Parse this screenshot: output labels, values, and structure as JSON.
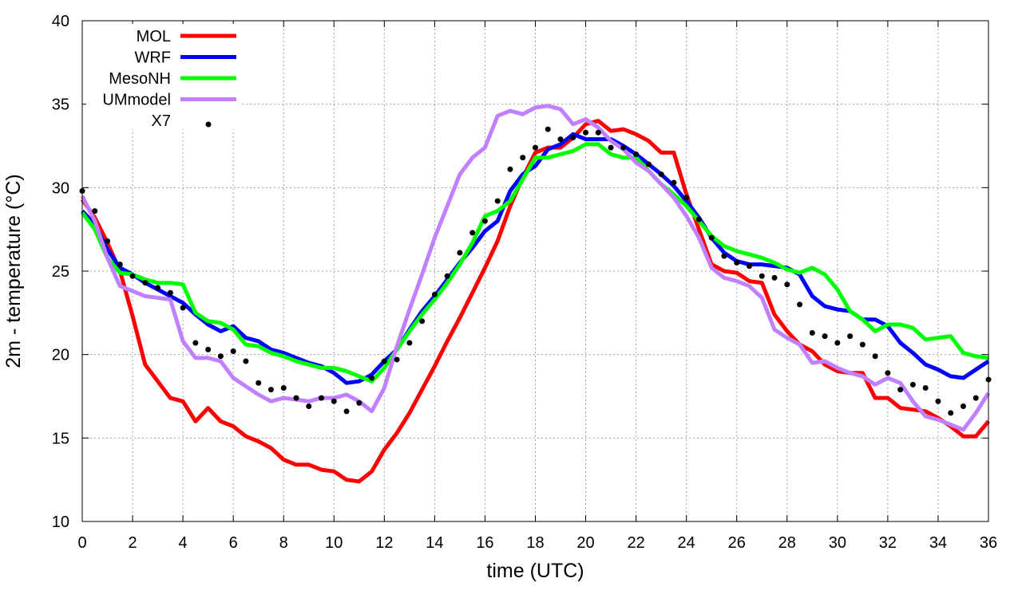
{
  "chart_data": {
    "type": "line",
    "title": "",
    "xlabel": "time (UTC)",
    "ylabel": "2m - temperature (°C)",
    "xlim": [
      0,
      36
    ],
    "ylim": [
      10,
      40
    ],
    "xticks": [
      0,
      2,
      4,
      6,
      8,
      10,
      12,
      14,
      16,
      18,
      20,
      22,
      24,
      26,
      28,
      30,
      32,
      34,
      36
    ],
    "yticks": [
      10,
      15,
      20,
      25,
      30,
      35,
      40
    ],
    "grid": true,
    "legend_position": "top-left",
    "series": [
      {
        "name": "MOL",
        "color": "#ff0000",
        "style": "line",
        "x": [
          0,
          0.5,
          1,
          1.5,
          2,
          2.5,
          3,
          3.5,
          4,
          4.5,
          5,
          5.5,
          6,
          6.5,
          7,
          7.5,
          8,
          8.5,
          9,
          9.5,
          10,
          10.5,
          11,
          11.5,
          12,
          12.5,
          13,
          13.5,
          14,
          14.5,
          15,
          15.5,
          16,
          16.5,
          17,
          17.5,
          18,
          18.5,
          19,
          19.5,
          20,
          20.5,
          21,
          21.5,
          22,
          22.5,
          23,
          23.5,
          24,
          24.5,
          25,
          25.5,
          26,
          26.5,
          27,
          27.5,
          28,
          28.5,
          29,
          29.5,
          30,
          30.5,
          31,
          31.5,
          32,
          32.5,
          33,
          33.5,
          34,
          34.5,
          35,
          35.5,
          36
        ],
        "y": [
          29.3,
          28.2,
          26.7,
          25.0,
          22.3,
          19.4,
          18.4,
          17.4,
          17.2,
          16.0,
          16.8,
          16.0,
          15.7,
          15.1,
          14.8,
          14.4,
          13.7,
          13.4,
          13.4,
          13.1,
          13.0,
          12.5,
          12.4,
          13.0,
          14.3,
          15.3,
          16.5,
          17.9,
          19.3,
          20.8,
          22.2,
          23.7,
          25.2,
          26.8,
          28.9,
          30.6,
          32.1,
          32.4,
          32.4,
          33.0,
          33.8,
          34.0,
          33.4,
          33.5,
          33.2,
          32.8,
          32.1,
          32.1,
          29.6,
          27.5,
          25.4,
          25.0,
          24.9,
          24.4,
          24.3,
          22.4,
          21.4,
          20.6,
          20.2,
          19.4,
          19.0,
          18.9,
          18.9,
          17.4,
          17.4,
          16.8,
          16.7,
          16.6,
          16.2,
          15.7,
          15.1,
          15.1,
          16.0
        ]
      },
      {
        "name": "WRF",
        "color": "#0000ff",
        "style": "line",
        "x": [
          0,
          0.5,
          1,
          1.5,
          2,
          2.5,
          3,
          3.5,
          4,
          4.5,
          5,
          5.5,
          6,
          6.5,
          7,
          7.5,
          8,
          8.5,
          9,
          9.5,
          10,
          10.5,
          11,
          11.5,
          12,
          12.5,
          13,
          13.5,
          14,
          14.5,
          15,
          15.5,
          16,
          16.5,
          17,
          17.5,
          18,
          18.5,
          19,
          19.5,
          20,
          20.5,
          21,
          21.5,
          22,
          22.5,
          23,
          23.5,
          24,
          24.5,
          25,
          25.5,
          26,
          26.5,
          27,
          27.5,
          28,
          28.5,
          29,
          29.5,
          30,
          30.5,
          31,
          31.5,
          32,
          32.5,
          33,
          33.5,
          34,
          34.5,
          35,
          35.5,
          36
        ],
        "y": [
          28.6,
          27.8,
          26.3,
          25.2,
          24.8,
          24.3,
          23.9,
          23.5,
          23.1,
          22.4,
          21.8,
          21.4,
          21.7,
          21.0,
          20.8,
          20.3,
          20.1,
          19.8,
          19.5,
          19.3,
          18.9,
          18.3,
          18.4,
          18.8,
          19.6,
          20.3,
          21.5,
          22.6,
          23.5,
          24.5,
          25.5,
          26.4,
          27.4,
          28.0,
          29.8,
          30.8,
          31.3,
          32.3,
          32.6,
          33.2,
          32.9,
          32.9,
          32.9,
          32.5,
          32.0,
          31.4,
          30.8,
          30.1,
          29.2,
          28.2,
          27.0,
          26.1,
          25.6,
          25.4,
          25.4,
          25.3,
          25.2,
          24.8,
          23.5,
          22.9,
          22.7,
          22.6,
          22.1,
          22.1,
          21.7,
          20.7,
          20.1,
          19.4,
          19.1,
          18.7,
          18.6,
          19.1,
          19.6
        ]
      },
      {
        "name": "MesoNH",
        "color": "#00ff00",
        "style": "line",
        "x": [
          0,
          0.5,
          1,
          1.5,
          2,
          2.5,
          3,
          3.5,
          4,
          4.5,
          5,
          5.5,
          6,
          6.5,
          7,
          7.5,
          8,
          8.5,
          9,
          9.5,
          10,
          10.5,
          11,
          11.5,
          12,
          12.5,
          13,
          13.5,
          14,
          14.5,
          15,
          15.5,
          16,
          16.5,
          17,
          17.5,
          18,
          18.5,
          19,
          19.5,
          20,
          20.5,
          21,
          21.5,
          22,
          22.5,
          23,
          23.5,
          24,
          24.5,
          25,
          25.5,
          26,
          26.5,
          27,
          27.5,
          28,
          28.5,
          29,
          29.5,
          30,
          30.5,
          31,
          31.5,
          32,
          32.5,
          33,
          33.5,
          34,
          34.5,
          35,
          35.5,
          36
        ],
        "y": [
          28.5,
          27.5,
          25.8,
          24.9,
          24.8,
          24.5,
          24.3,
          24.3,
          24.2,
          22.5,
          22.0,
          21.9,
          21.5,
          20.6,
          20.5,
          20.1,
          19.9,
          19.6,
          19.4,
          19.2,
          19.2,
          19.0,
          18.7,
          18.4,
          19.2,
          20.3,
          21.4,
          22.4,
          23.3,
          24.3,
          25.4,
          26.7,
          28.3,
          28.6,
          29.2,
          30.5,
          31.8,
          31.8,
          32.0,
          32.2,
          32.6,
          32.6,
          32.0,
          31.8,
          31.8,
          31.0,
          30.2,
          29.6,
          28.9,
          28.0,
          27.1,
          26.5,
          26.2,
          26.0,
          25.8,
          25.5,
          25.1,
          24.9,
          25.2,
          24.8,
          23.9,
          22.6,
          22.1,
          21.4,
          21.8,
          21.8,
          21.6,
          20.9,
          21.0,
          21.1,
          20.1,
          19.9,
          19.8
        ]
      },
      {
        "name": "UMmodel",
        "color": "#c080ff",
        "style": "line",
        "x": [
          0,
          0.5,
          1,
          1.5,
          2,
          2.5,
          3,
          3.5,
          4,
          4.5,
          5,
          5.5,
          6,
          6.5,
          7,
          7.5,
          8,
          8.5,
          9,
          9.5,
          10,
          10.5,
          11,
          11.5,
          12,
          12.5,
          13,
          13.5,
          14,
          14.5,
          15,
          15.5,
          16,
          16.5,
          17,
          17.5,
          18,
          18.5,
          19,
          19.5,
          20,
          20.5,
          21,
          21.5,
          22,
          22.5,
          23,
          23.5,
          24,
          24.5,
          25,
          25.5,
          26,
          26.5,
          27,
          27.5,
          28,
          28.5,
          29,
          29.5,
          30,
          30.5,
          31,
          31.5,
          32,
          32.5,
          33,
          33.5,
          34,
          34.5,
          35,
          35.5,
          36
        ],
        "y": [
          29.5,
          28.0,
          25.8,
          24.1,
          23.8,
          23.5,
          23.4,
          23.3,
          20.8,
          19.8,
          19.8,
          19.6,
          18.6,
          18.1,
          17.6,
          17.2,
          17.4,
          17.3,
          17.2,
          17.4,
          17.4,
          17.6,
          17.2,
          16.6,
          18.0,
          20.5,
          22.7,
          24.8,
          27.0,
          28.9,
          30.8,
          31.8,
          32.4,
          34.3,
          34.6,
          34.4,
          34.8,
          34.9,
          34.7,
          33.8,
          34.1,
          33.6,
          32.8,
          32.3,
          31.5,
          31.0,
          30.2,
          29.4,
          28.3,
          27.0,
          25.2,
          24.6,
          24.4,
          24.1,
          23.4,
          21.5,
          21.0,
          20.6,
          19.5,
          19.6,
          19.2,
          18.9,
          18.7,
          18.2,
          18.6,
          18.3,
          17.2,
          16.3,
          16.1,
          15.8,
          15.5,
          16.5,
          17.7
        ]
      },
      {
        "name": "X7",
        "color": "#000000",
        "style": "points",
        "x": [
          0,
          0.5,
          1,
          1.5,
          2,
          2.5,
          3,
          3.5,
          4,
          4.5,
          5,
          5.5,
          6,
          6.5,
          7,
          7.5,
          8,
          8.5,
          9,
          9.5,
          10,
          10.5,
          11,
          11.5,
          12,
          12.5,
          13,
          13.5,
          14,
          14.5,
          15,
          15.5,
          16,
          16.5,
          17,
          17.5,
          18,
          18.5,
          19,
          19.5,
          20,
          20.5,
          21,
          21.5,
          22,
          22.5,
          23,
          23.5,
          24,
          24.5,
          25,
          25.5,
          26,
          26.5,
          27,
          27.5,
          28,
          28.5,
          29,
          29.5,
          30,
          30.5,
          31,
          31.5,
          32,
          32.5,
          33,
          33.5,
          34,
          34.5,
          35,
          35.5,
          36
        ],
        "y": [
          29.8,
          28.6,
          26.8,
          25.4,
          24.7,
          24.3,
          24.0,
          23.7,
          22.8,
          20.7,
          20.3,
          19.9,
          20.2,
          19.6,
          18.3,
          17.9,
          18.0,
          17.4,
          16.9,
          17.4,
          17.2,
          16.6,
          17.1,
          18.6,
          19.6,
          19.7,
          20.7,
          22.0,
          23.6,
          24.7,
          26.1,
          27.3,
          28.0,
          29.2,
          31.1,
          31.8,
          32.4,
          33.5,
          32.9,
          33.0,
          33.3,
          33.3,
          32.4,
          32.4,
          32.0,
          31.4,
          30.8,
          30.3,
          29.4,
          28.1,
          27.0,
          25.9,
          25.5,
          25.3,
          24.7,
          24.6,
          24.2,
          23.0,
          21.3,
          21.1,
          20.7,
          21.1,
          20.6,
          19.9,
          18.9,
          17.9,
          18.2,
          18.0,
          17.2,
          16.5,
          16.9,
          17.4,
          18.5
        ]
      }
    ]
  }
}
